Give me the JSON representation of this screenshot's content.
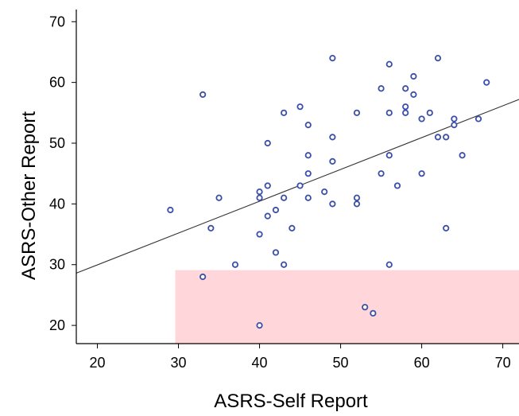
{
  "chart_data": {
    "type": "scatter",
    "xlabel": "ASRS-Self Report",
    "ylabel": "ASRS-Other Report",
    "xlim": [
      17.4,
      72
    ],
    "ylim": [
      17,
      72
    ],
    "x_ticks": [
      20,
      30,
      40,
      50,
      60,
      70
    ],
    "y_ticks": [
      20,
      30,
      40,
      50,
      60,
      70
    ],
    "marker_color": "#3b4fa8",
    "fit_line": {
      "color": "#333333",
      "y_at_x_17.4": 28.6,
      "y_at_x_72": 57.2
    },
    "shaded_region": {
      "x_from": 29.6,
      "x_to": 72,
      "y_from": 17,
      "y_to": 29.1,
      "color": "#ffd7db"
    },
    "points": [
      {
        "x": 29,
        "y": 39
      },
      {
        "x": 33,
        "y": 58
      },
      {
        "x": 33,
        "y": 28
      },
      {
        "x": 34,
        "y": 36
      },
      {
        "x": 35,
        "y": 41
      },
      {
        "x": 37,
        "y": 30
      },
      {
        "x": 40,
        "y": 42
      },
      {
        "x": 40,
        "y": 41
      },
      {
        "x": 40,
        "y": 35
      },
      {
        "x": 40,
        "y": 20
      },
      {
        "x": 41,
        "y": 50
      },
      {
        "x": 41,
        "y": 43
      },
      {
        "x": 41,
        "y": 38
      },
      {
        "x": 42,
        "y": 39
      },
      {
        "x": 42,
        "y": 32
      },
      {
        "x": 43,
        "y": 55
      },
      {
        "x": 43,
        "y": 41
      },
      {
        "x": 43,
        "y": 30
      },
      {
        "x": 44,
        "y": 36
      },
      {
        "x": 45,
        "y": 56
      },
      {
        "x": 45,
        "y": 43
      },
      {
        "x": 46,
        "y": 53
      },
      {
        "x": 46,
        "y": 48
      },
      {
        "x": 46,
        "y": 45
      },
      {
        "x": 46,
        "y": 41
      },
      {
        "x": 48,
        "y": 42
      },
      {
        "x": 49,
        "y": 64
      },
      {
        "x": 49,
        "y": 51
      },
      {
        "x": 49,
        "y": 47
      },
      {
        "x": 49,
        "y": 40
      },
      {
        "x": 52,
        "y": 55
      },
      {
        "x": 52,
        "y": 41
      },
      {
        "x": 52,
        "y": 40
      },
      {
        "x": 53,
        "y": 23
      },
      {
        "x": 54,
        "y": 22
      },
      {
        "x": 55,
        "y": 59
      },
      {
        "x": 55,
        "y": 45
      },
      {
        "x": 56,
        "y": 63
      },
      {
        "x": 56,
        "y": 55
      },
      {
        "x": 56,
        "y": 48
      },
      {
        "x": 56,
        "y": 30
      },
      {
        "x": 57,
        "y": 43
      },
      {
        "x": 58,
        "y": 59
      },
      {
        "x": 58,
        "y": 56
      },
      {
        "x": 58,
        "y": 55
      },
      {
        "x": 59,
        "y": 61
      },
      {
        "x": 59,
        "y": 58
      },
      {
        "x": 60,
        "y": 54
      },
      {
        "x": 60,
        "y": 45
      },
      {
        "x": 61,
        "y": 55
      },
      {
        "x": 62,
        "y": 64
      },
      {
        "x": 62,
        "y": 51
      },
      {
        "x": 63,
        "y": 51
      },
      {
        "x": 63,
        "y": 36
      },
      {
        "x": 64,
        "y": 54
      },
      {
        "x": 64,
        "y": 53
      },
      {
        "x": 65,
        "y": 48
      },
      {
        "x": 67,
        "y": 54
      },
      {
        "x": 68,
        "y": 60
      }
    ]
  }
}
